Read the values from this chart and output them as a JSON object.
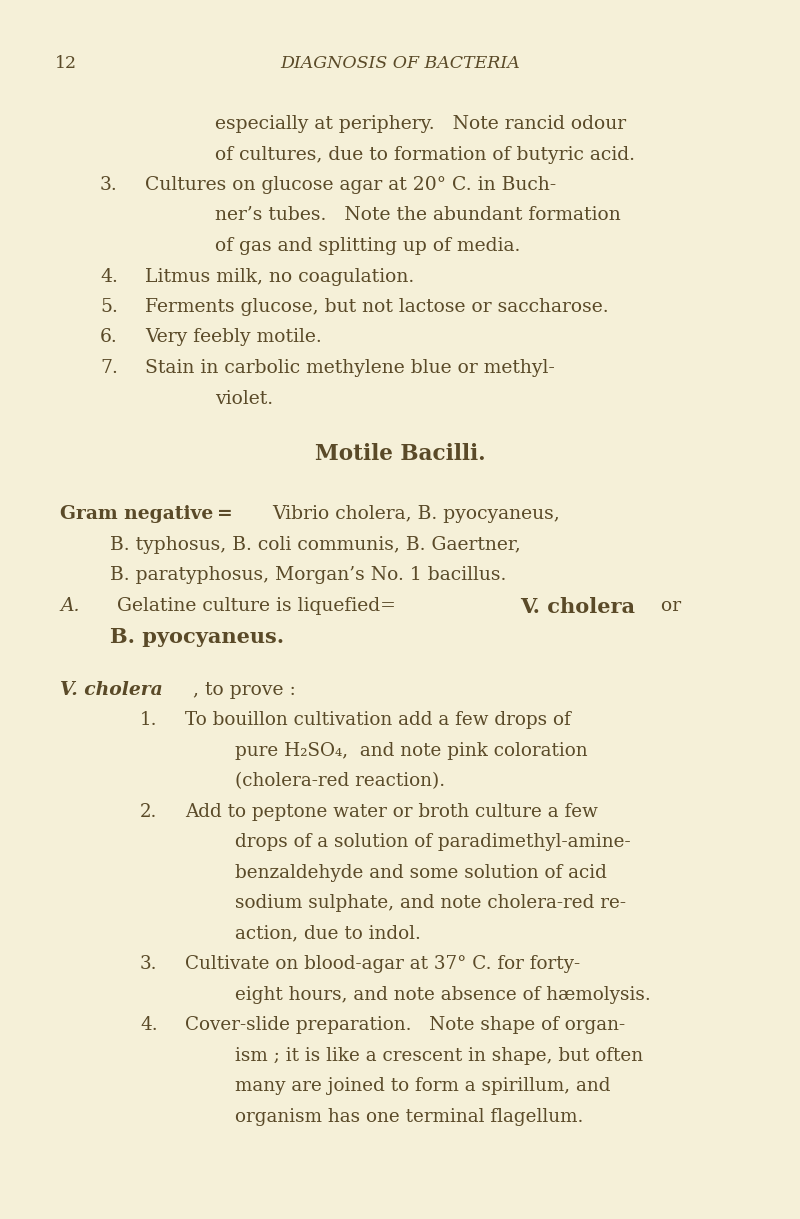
{
  "bg_color": "#f5f0d8",
  "text_color": "#5a4a28",
  "page_number": "12",
  "header": "DIAGNOSIS OF BACTERIA",
  "content_lines": [
    {
      "type": "indent2",
      "text": "especially at periphery.   Note rancid odour"
    },
    {
      "type": "indent2",
      "text": "of cultures, due to formation of butyric acid."
    },
    {
      "type": "numbered",
      "num": "3.",
      "text": "Cultures on glucose agar at 20° C. in Buch-"
    },
    {
      "type": "indent3",
      "text": "ner’s tubes.   Note the abundant formation"
    },
    {
      "type": "indent3",
      "text": "of gas and splitting up of media."
    },
    {
      "type": "numbered",
      "num": "4.",
      "text": "Litmus milk, no coagulation."
    },
    {
      "type": "numbered",
      "num": "5.",
      "text": "Ferments glucose, but not lactose or saccharose."
    },
    {
      "type": "numbered",
      "num": "6.",
      "text": "Very feebly motile."
    },
    {
      "type": "numbered",
      "num": "7.",
      "text": "Stain in carbolic methylene blue or methyl-"
    },
    {
      "type": "indent3",
      "text": "violet."
    },
    {
      "type": "blank"
    },
    {
      "type": "section_title",
      "text": "Motile Bacilli."
    },
    {
      "type": "blank"
    },
    {
      "type": "gram_line1",
      "bold": "Gram negative =",
      "normal": "Vibrio cholera, B. pyocyaneus,"
    },
    {
      "type": "gram_ind",
      "text": "B. typhosus, B. coli communis, B. Gaertner,"
    },
    {
      "type": "gram_ind",
      "text": "B. paratyphosus, Morgan’s No. 1 bacillus."
    },
    {
      "type": "A_line",
      "italic": "A.",
      "normal": "  Gelatine culture is liquefied=",
      "bold": "V. cholera",
      "end": " or"
    },
    {
      "type": "B_line",
      "bold": "B. pyocyaneus."
    },
    {
      "type": "blank"
    },
    {
      "type": "V_line",
      "bold_italic": "V. cholera",
      "normal": ", to prove :"
    },
    {
      "type": "sub_num",
      "num": "1.",
      "text": "To bouillon cultivation add a few drops of"
    },
    {
      "type": "sub_ind",
      "text": "pure H₂SO₄,  and note pink coloration"
    },
    {
      "type": "sub_ind",
      "text": "(cholera-red reaction)."
    },
    {
      "type": "sub_num",
      "num": "2.",
      "text": "Add to peptone water or broth culture a few"
    },
    {
      "type": "sub_ind",
      "text": "drops of a solution of paradimethyl-amine-"
    },
    {
      "type": "sub_ind",
      "text": "benzaldehyde and some solution of acid"
    },
    {
      "type": "sub_ind",
      "text": "sodium sulphate, and note cholera-red re-"
    },
    {
      "type": "sub_ind",
      "text": "action, due to indol."
    },
    {
      "type": "sub_num",
      "num": "3.",
      "text": "Cultivate on blood-agar at 37° C. for forty-"
    },
    {
      "type": "sub_ind",
      "text": "eight hours, and note absence of hæmolysis."
    },
    {
      "type": "sub_num",
      "num": "4.",
      "text": "Cover-slide preparation.   Note shape of organ-"
    },
    {
      "type": "sub_ind",
      "text": "ism ; it is like a crescent in shape, but often"
    },
    {
      "type": "sub_ind",
      "text": "many are joined to form a spirillum, and"
    },
    {
      "type": "sub_ind",
      "text": "organism has one terminal flagellum."
    }
  ]
}
